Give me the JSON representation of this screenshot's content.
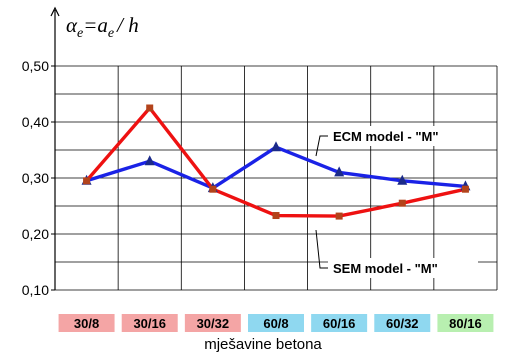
{
  "chart_data": {
    "type": "line",
    "categories": [
      "30/8",
      "30/16",
      "30/32",
      "60/8",
      "60/16",
      "60/32",
      "80/16"
    ],
    "category_colors": [
      "#f4a5a5",
      "#f4a5a5",
      "#f4a5a5",
      "#8fd8f0",
      "#8fd8f0",
      "#8fd8f0",
      "#b8efb0"
    ],
    "series": [
      {
        "name": "ECM model - \"M\"",
        "color": "#1a22e6",
        "marker_color": "#1b2a8a",
        "marker": "triangle",
        "values": [
          0.295,
          0.33,
          0.282,
          0.355,
          0.31,
          0.295,
          0.285
        ]
      },
      {
        "name": "SEM model - \"M\"",
        "color": "#ee1111",
        "marker_color": "#b3431b",
        "marker": "square",
        "values": [
          0.295,
          0.425,
          0.28,
          0.233,
          0.232,
          0.255,
          0.28
        ]
      }
    ],
    "ylabel_parts": {
      "alpha": "α",
      "alpha_sub": "e",
      "eq": "=a",
      "a_sub": "e",
      "over": "/ h"
    },
    "xlabel": "mješavine betona",
    "yticks": [
      "0,10",
      "0,20",
      "0,30",
      "0,40",
      "0,50"
    ],
    "ytick_values": [
      0.1,
      0.2,
      0.3,
      0.4,
      0.5
    ],
    "ylim": [
      0.1,
      0.5
    ],
    "grid": true
  }
}
